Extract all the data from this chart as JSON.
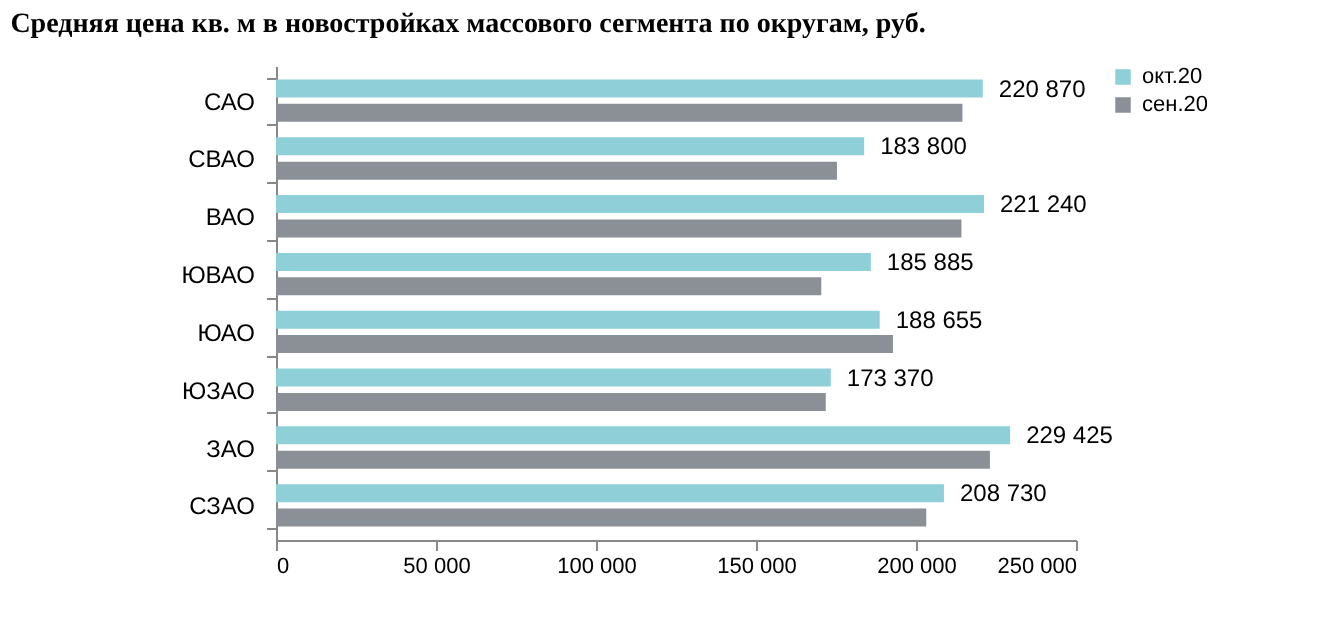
{
  "chart_data": {
    "type": "bar",
    "orientation": "horizontal",
    "title": "Средняя цена кв. м в новостройках массового сегмента по округам, руб.",
    "categories": [
      "САО",
      "СВАО",
      "ВАО",
      "ЮВАО",
      "ЮАО",
      "ЮЗАО",
      "ЗАО",
      "СЗАО"
    ],
    "series": [
      {
        "name": "окт.20",
        "color": "#8ecfd8",
        "values": [
          220870,
          183800,
          221240,
          185885,
          188655,
          173370,
          229425,
          208730
        ],
        "value_labels": [
          "220 870",
          "183 800",
          "221 240",
          "185 885",
          "188 655",
          "173 370",
          "229 425",
          "208 730"
        ]
      },
      {
        "name": "сен.20",
        "color": "#8a9096",
        "values": [
          214500,
          175300,
          214200,
          170400,
          192800,
          171800,
          223100,
          203200
        ]
      }
    ],
    "xlim": [
      0,
      250000
    ],
    "xticks": [
      0,
      {
        "value": 50000,
        "label": "50 000"
      },
      {
        "value": 100000,
        "label": "100 000"
      },
      {
        "value": 150000,
        "label": "150 000"
      },
      {
        "value": 200000,
        "label": "200 000"
      },
      {
        "value": 250000,
        "label": "250 000"
      }
    ],
    "grid": false,
    "legend": "right"
  }
}
